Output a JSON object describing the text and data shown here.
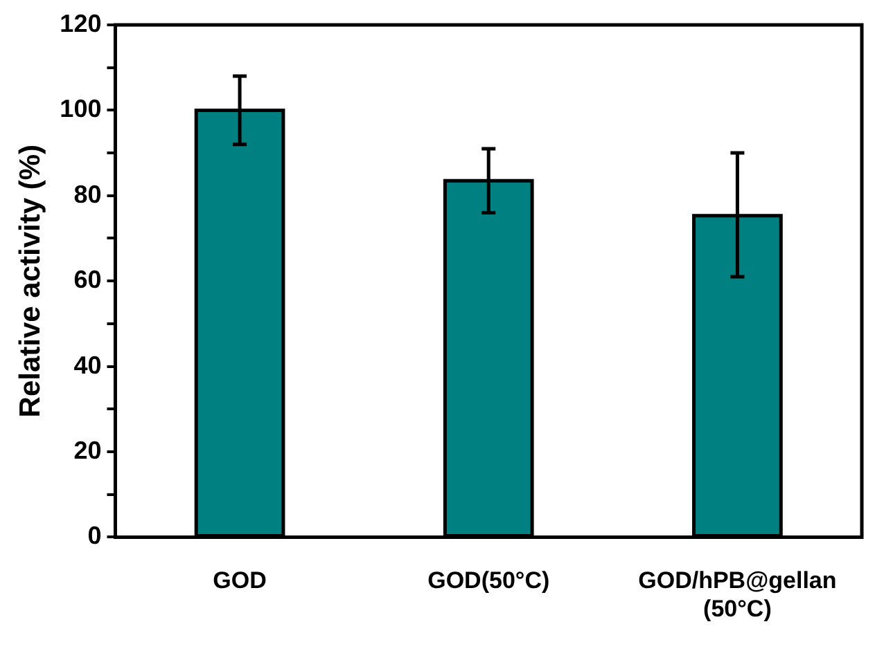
{
  "chart_data": {
    "type": "bar",
    "ylabel": "Relative activity (%)",
    "categories": [
      "GOD",
      "GOD(50°C)",
      "GOD/hPB@gellan (50°C)"
    ],
    "values": [
      100,
      83.5,
      75.3
    ],
    "errors": [
      [
        92,
        108
      ],
      [
        76,
        91
      ],
      [
        61,
        90
      ]
    ],
    "color": "#008080",
    "ylim": [
      0,
      120
    ],
    "yticks": [
      0,
      {
        "value": 10,
        "label": null
      },
      20,
      {
        "value": 30,
        "label": null
      },
      40,
      {
        "value": 50,
        "label": null
      },
      60,
      {
        "value": 70,
        "label": null
      },
      80,
      {
        "value": 90,
        "label": null
      },
      100,
      {
        "value": 110,
        "label": null
      },
      120
    ],
    "grid": false,
    "legend": false
  }
}
